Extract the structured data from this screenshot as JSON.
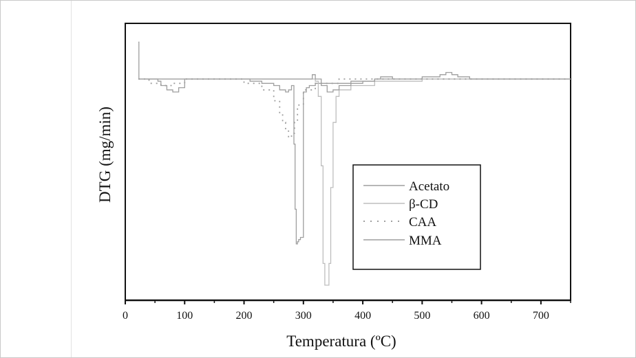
{
  "chart_data": {
    "type": "line",
    "title": "",
    "xlabel": "Temperatura (ºC)",
    "ylabel": "DTG (mg/min)",
    "xlim": [
      0,
      750
    ],
    "ylim": [
      -1.0,
      0.16
    ],
    "x_ticks": [
      0,
      100,
      200,
      300,
      400,
      500,
      600,
      700
    ],
    "x_tick_labels": [
      "0",
      "100",
      "200",
      "300",
      "400",
      "500",
      "600",
      "700"
    ],
    "grid": false,
    "legend_position": "center-right",
    "colors": {
      "axis": "#111111",
      "frame": "#c9c9c9",
      "series_line": "#9e9e9e",
      "series_light": "#bdbdbd"
    },
    "series": [
      {
        "name": "Acetato",
        "style": "solid",
        "x": [
          22,
          30,
          40,
          55,
          60,
          70,
          80,
          90,
          100,
          120,
          160,
          200,
          210,
          215,
          230,
          250,
          260,
          270,
          275,
          280,
          284,
          286,
          288,
          290,
          292,
          295,
          300,
          305,
          310,
          320,
          340,
          380,
          420,
          500,
          560,
          600,
          700,
          750
        ],
        "y": [
          0.0,
          0.0,
          0.0,
          -0.01,
          -0.03,
          -0.05,
          -0.06,
          -0.04,
          0.0,
          0.0,
          0.0,
          0.0,
          -0.01,
          -0.01,
          -0.02,
          -0.03,
          -0.05,
          -0.06,
          -0.05,
          -0.03,
          -0.3,
          -0.6,
          -0.76,
          -0.75,
          -0.74,
          -0.73,
          -0.06,
          -0.04,
          -0.03,
          -0.02,
          -0.02,
          -0.01,
          0.0,
          0.0,
          0.0,
          0.0,
          0.0,
          0.0
        ]
      },
      {
        "name": "β-CD",
        "style": "solid",
        "x": [
          22,
          40,
          100,
          200,
          300,
          320,
          325,
          330,
          333,
          336,
          340,
          343,
          346,
          350,
          355,
          360,
          380,
          420,
          500,
          600,
          700,
          750
        ],
        "y": [
          0.0,
          0.0,
          0.0,
          0.0,
          0.0,
          -0.01,
          -0.08,
          -0.4,
          -0.85,
          -0.95,
          -0.95,
          -0.85,
          -0.5,
          -0.2,
          -0.08,
          -0.05,
          -0.03,
          -0.01,
          0.0,
          0.0,
          0.0,
          0.0
        ]
      },
      {
        "name": "CAA",
        "style": "dotted",
        "x": [
          22,
          40,
          60,
          80,
          100,
          200,
          230,
          250,
          260,
          265,
          270,
          275,
          280,
          285,
          290,
          300,
          320,
          360,
          420,
          500,
          700,
          750
        ],
        "y": [
          0.0,
          -0.02,
          -0.03,
          -0.02,
          0.0,
          -0.02,
          -0.05,
          -0.1,
          -0.16,
          -0.2,
          -0.24,
          -0.27,
          -0.25,
          -0.2,
          -0.12,
          -0.05,
          -0.02,
          0.0,
          0.0,
          0.0,
          0.0,
          0.0
        ]
      },
      {
        "name": "MMA",
        "style": "solid",
        "x": [
          22,
          23,
          25,
          40,
          100,
          150,
          200,
          300,
          310,
          315,
          320,
          330,
          340,
          350,
          360,
          380,
          400,
          420,
          430,
          450,
          500,
          530,
          540,
          550,
          560,
          580,
          600,
          650,
          700,
          750
        ],
        "y": [
          0.17,
          0.0,
          0.0,
          0.0,
          0.0,
          0.0,
          0.0,
          0.0,
          0.0,
          0.02,
          0.0,
          -0.03,
          -0.06,
          -0.05,
          -0.03,
          -0.02,
          -0.01,
          0.0,
          0.01,
          0.0,
          0.01,
          0.02,
          0.03,
          0.02,
          0.01,
          0.0,
          0.0,
          0.0,
          0.0,
          0.0
        ]
      }
    ]
  }
}
